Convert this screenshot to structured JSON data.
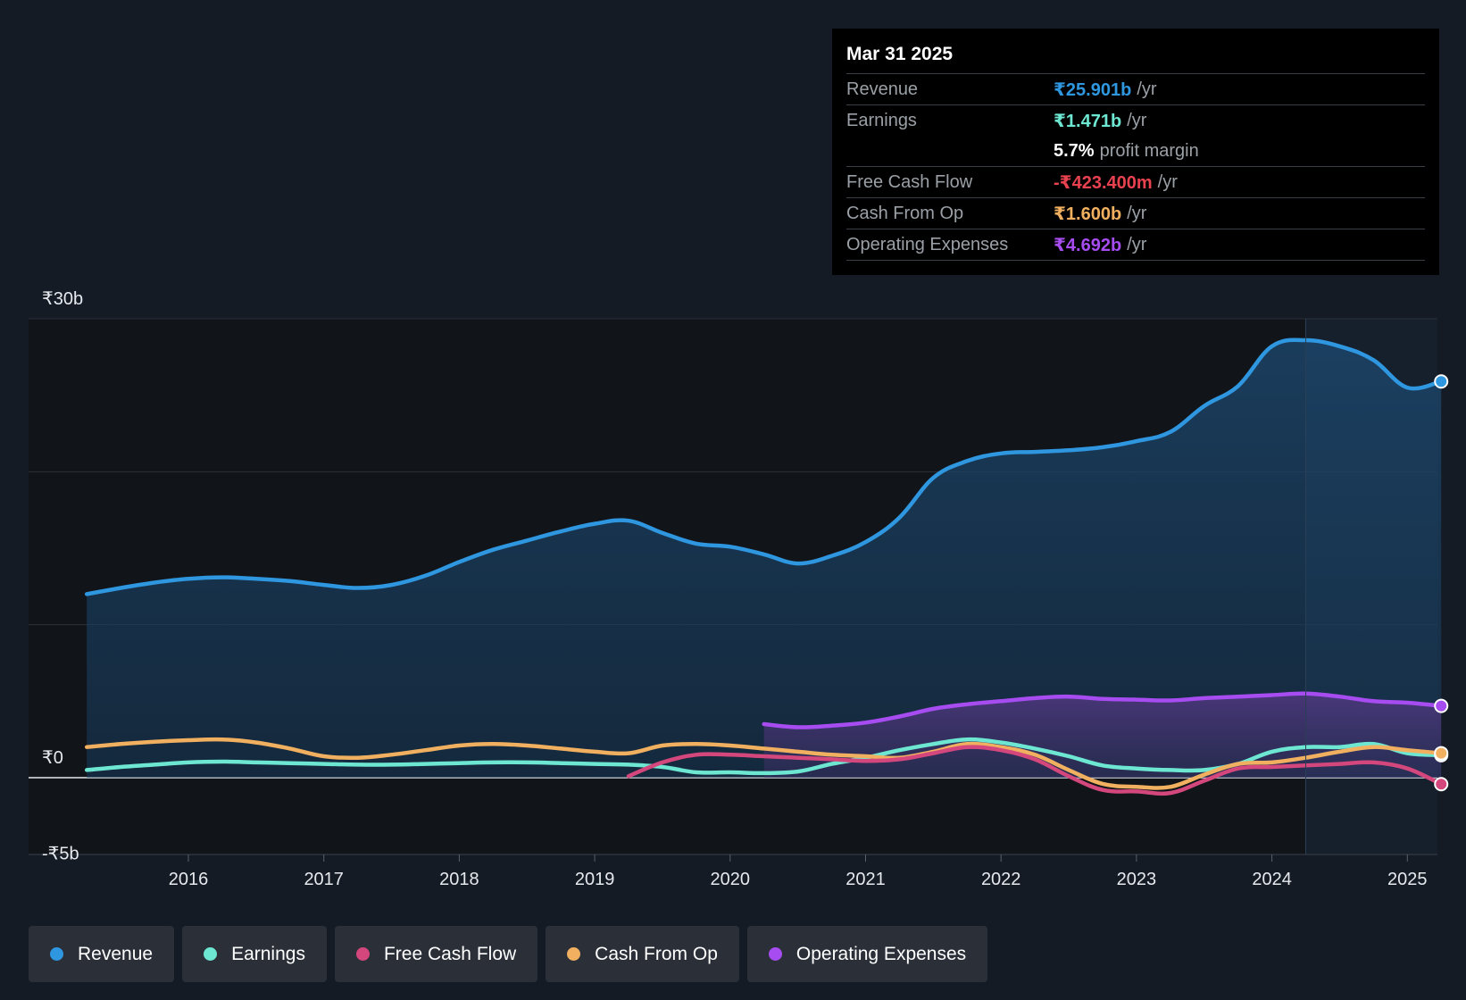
{
  "tooltip": {
    "date": "Mar 31 2025",
    "rows": [
      {
        "label": "Revenue",
        "value": "₹25.901b",
        "suffix": "/yr",
        "color": "#2f96e0"
      },
      {
        "label": "Earnings",
        "value": "₹1.471b",
        "suffix": "/yr",
        "color": "#6ee7d2"
      },
      {
        "label": "",
        "value": "5.7%",
        "suffix": "profit margin",
        "color": "#ffffff"
      },
      {
        "label": "Free Cash Flow",
        "value": "-₹423.400m",
        "suffix": "/yr",
        "color": "#e8424f"
      },
      {
        "label": "Cash From Op",
        "value": "₹1.600b",
        "suffix": "/yr",
        "color": "#f0b060"
      },
      {
        "label": "Operating Expenses",
        "value": "₹4.692b",
        "suffix": "/yr",
        "color": "#a64cf0"
      }
    ]
  },
  "legend": [
    {
      "label": "Revenue",
      "color": "#2f96e0"
    },
    {
      "label": "Earnings",
      "color": "#6ee7d2"
    },
    {
      "label": "Free Cash Flow",
      "color": "#d4477c"
    },
    {
      "label": "Cash From Op",
      "color": "#f0b060"
    },
    {
      "label": "Operating Expenses",
      "color": "#a64cf0"
    }
  ],
  "chart_data": {
    "type": "line",
    "title": "",
    "xlabel": "",
    "ylabel": "",
    "ylim": [
      -5,
      30
    ],
    "y_tick_labels": [
      {
        "value": 30,
        "label": "₹30b"
      },
      {
        "value": 0,
        "label": "₹0"
      },
      {
        "value": -5,
        "label": "-₹5b"
      }
    ],
    "gridlines": [
      30,
      20,
      10,
      0
    ],
    "x_ticks": [
      {
        "value": 2016,
        "label": "2016"
      },
      {
        "value": 2017,
        "label": "2017"
      },
      {
        "value": 2018,
        "label": "2018"
      },
      {
        "value": 2019,
        "label": "2019"
      },
      {
        "value": 2020,
        "label": "2020"
      },
      {
        "value": 2021,
        "label": "2021"
      },
      {
        "value": 2022,
        "label": "2022"
      },
      {
        "value": 2023,
        "label": "2023"
      },
      {
        "value": 2024,
        "label": "2024"
      },
      {
        "value": 2025,
        "label": "2025"
      }
    ],
    "xlim": [
      2014.5,
      2025.25
    ],
    "highlight_from": 2024.25,
    "series": [
      {
        "name": "Revenue",
        "color": "#2f96e0",
        "fill": true,
        "points": [
          [
            2015.25,
            12.0
          ],
          [
            2015.5,
            12.4
          ],
          [
            2015.75,
            12.75
          ],
          [
            2016.0,
            13.0
          ],
          [
            2016.25,
            13.1
          ],
          [
            2016.5,
            13.0
          ],
          [
            2016.75,
            12.85
          ],
          [
            2017.0,
            12.6
          ],
          [
            2017.25,
            12.4
          ],
          [
            2017.5,
            12.6
          ],
          [
            2017.75,
            13.2
          ],
          [
            2018.0,
            14.1
          ],
          [
            2018.25,
            14.9
          ],
          [
            2018.5,
            15.5
          ],
          [
            2018.75,
            16.1
          ],
          [
            2019.0,
            16.6
          ],
          [
            2019.25,
            16.8
          ],
          [
            2019.5,
            16.0
          ],
          [
            2019.75,
            15.3
          ],
          [
            2020.0,
            15.1
          ],
          [
            2020.25,
            14.6
          ],
          [
            2020.5,
            14.0
          ],
          [
            2020.75,
            14.5
          ],
          [
            2021.0,
            15.4
          ],
          [
            2021.25,
            17.0
          ],
          [
            2021.5,
            19.6
          ],
          [
            2021.75,
            20.7
          ],
          [
            2022.0,
            21.2
          ],
          [
            2022.25,
            21.3
          ],
          [
            2022.5,
            21.4
          ],
          [
            2022.75,
            21.6
          ],
          [
            2023.0,
            22.0
          ],
          [
            2023.25,
            22.6
          ],
          [
            2023.5,
            24.3
          ],
          [
            2023.75,
            25.6
          ],
          [
            2024.0,
            28.2
          ],
          [
            2024.25,
            28.6
          ],
          [
            2024.5,
            28.2
          ],
          [
            2024.75,
            27.3
          ],
          [
            2025.0,
            25.5
          ],
          [
            2025.25,
            25.901
          ]
        ]
      },
      {
        "name": "Operating Expenses",
        "color": "#a64cf0",
        "fill": true,
        "points": [
          [
            2020.25,
            3.5
          ],
          [
            2020.5,
            3.3
          ],
          [
            2020.75,
            3.4
          ],
          [
            2021.0,
            3.6
          ],
          [
            2021.25,
            4.0
          ],
          [
            2021.5,
            4.5
          ],
          [
            2021.75,
            4.8
          ],
          [
            2022.0,
            5.0
          ],
          [
            2022.25,
            5.2
          ],
          [
            2022.5,
            5.3
          ],
          [
            2022.75,
            5.15
          ],
          [
            2023.0,
            5.1
          ],
          [
            2023.25,
            5.05
          ],
          [
            2023.5,
            5.2
          ],
          [
            2023.75,
            5.3
          ],
          [
            2024.0,
            5.4
          ],
          [
            2024.25,
            5.5
          ],
          [
            2024.5,
            5.3
          ],
          [
            2024.75,
            5.0
          ],
          [
            2025.0,
            4.9
          ],
          [
            2025.25,
            4.692
          ]
        ]
      },
      {
        "name": "Earnings",
        "color": "#6ee7d2",
        "fill": false,
        "points": [
          [
            2015.25,
            0.5
          ],
          [
            2015.5,
            0.7
          ],
          [
            2015.75,
            0.85
          ],
          [
            2016.0,
            1.0
          ],
          [
            2016.25,
            1.05
          ],
          [
            2016.5,
            1.0
          ],
          [
            2016.75,
            0.95
          ],
          [
            2017.0,
            0.9
          ],
          [
            2017.25,
            0.85
          ],
          [
            2017.5,
            0.85
          ],
          [
            2017.75,
            0.9
          ],
          [
            2018.0,
            0.95
          ],
          [
            2018.25,
            1.0
          ],
          [
            2018.5,
            1.0
          ],
          [
            2018.75,
            0.95
          ],
          [
            2019.0,
            0.9
          ],
          [
            2019.25,
            0.85
          ],
          [
            2019.5,
            0.7
          ],
          [
            2019.75,
            0.35
          ],
          [
            2020.0,
            0.35
          ],
          [
            2020.25,
            0.3
          ],
          [
            2020.5,
            0.4
          ],
          [
            2020.75,
            0.9
          ],
          [
            2021.0,
            1.3
          ],
          [
            2021.25,
            1.8
          ],
          [
            2021.5,
            2.2
          ],
          [
            2021.75,
            2.5
          ],
          [
            2022.0,
            2.3
          ],
          [
            2022.25,
            1.9
          ],
          [
            2022.5,
            1.4
          ],
          [
            2022.75,
            0.8
          ],
          [
            2023.0,
            0.6
          ],
          [
            2023.25,
            0.5
          ],
          [
            2023.5,
            0.5
          ],
          [
            2023.75,
            0.9
          ],
          [
            2024.0,
            1.7
          ],
          [
            2024.25,
            2.0
          ],
          [
            2024.5,
            2.0
          ],
          [
            2024.75,
            2.2
          ],
          [
            2025.0,
            1.6
          ],
          [
            2025.25,
            1.471
          ]
        ]
      },
      {
        "name": "Cash From Op",
        "color": "#f0b060",
        "fill": false,
        "points": [
          [
            2015.25,
            2.0
          ],
          [
            2015.5,
            2.2
          ],
          [
            2015.75,
            2.35
          ],
          [
            2016.0,
            2.45
          ],
          [
            2016.25,
            2.5
          ],
          [
            2016.5,
            2.3
          ],
          [
            2016.75,
            1.9
          ],
          [
            2017.0,
            1.4
          ],
          [
            2017.25,
            1.3
          ],
          [
            2017.5,
            1.5
          ],
          [
            2017.75,
            1.8
          ],
          [
            2018.0,
            2.1
          ],
          [
            2018.25,
            2.2
          ],
          [
            2018.5,
            2.1
          ],
          [
            2018.75,
            1.9
          ],
          [
            2019.0,
            1.7
          ],
          [
            2019.25,
            1.6
          ],
          [
            2019.5,
            2.1
          ],
          [
            2019.75,
            2.2
          ],
          [
            2020.0,
            2.1
          ],
          [
            2020.25,
            1.9
          ],
          [
            2020.5,
            1.7
          ],
          [
            2020.75,
            1.5
          ],
          [
            2021.0,
            1.4
          ],
          [
            2021.25,
            1.3
          ],
          [
            2021.5,
            1.7
          ],
          [
            2021.75,
            2.2
          ],
          [
            2022.0,
            2.0
          ],
          [
            2022.25,
            1.5
          ],
          [
            2022.5,
            0.5
          ],
          [
            2022.75,
            -0.4
          ],
          [
            2023.0,
            -0.6
          ],
          [
            2023.25,
            -0.6
          ],
          [
            2023.5,
            0.2
          ],
          [
            2023.75,
            0.9
          ],
          [
            2024.0,
            1.0
          ],
          [
            2024.25,
            1.3
          ],
          [
            2024.5,
            1.7
          ],
          [
            2024.75,
            2.0
          ],
          [
            2025.0,
            1.8
          ],
          [
            2025.25,
            1.6
          ]
        ]
      },
      {
        "name": "Free Cash Flow",
        "color": "#d4477c",
        "fill": false,
        "points": [
          [
            2019.25,
            0.1
          ],
          [
            2019.5,
            1.0
          ],
          [
            2019.75,
            1.5
          ],
          [
            2020.0,
            1.5
          ],
          [
            2020.25,
            1.4
          ],
          [
            2020.5,
            1.3
          ],
          [
            2020.75,
            1.2
          ],
          [
            2021.0,
            1.1
          ],
          [
            2021.25,
            1.2
          ],
          [
            2021.5,
            1.6
          ],
          [
            2021.75,
            2.0
          ],
          [
            2022.0,
            1.8
          ],
          [
            2022.25,
            1.2
          ],
          [
            2022.5,
            0.1
          ],
          [
            2022.75,
            -0.8
          ],
          [
            2023.0,
            -0.9
          ],
          [
            2023.25,
            -1.0
          ],
          [
            2023.5,
            -0.2
          ],
          [
            2023.75,
            0.6
          ],
          [
            2024.0,
            0.7
          ],
          [
            2024.25,
            0.8
          ],
          [
            2024.5,
            0.9
          ],
          [
            2024.75,
            1.0
          ],
          [
            2025.0,
            0.6
          ],
          [
            2025.25,
            -0.4234
          ]
        ]
      }
    ]
  }
}
